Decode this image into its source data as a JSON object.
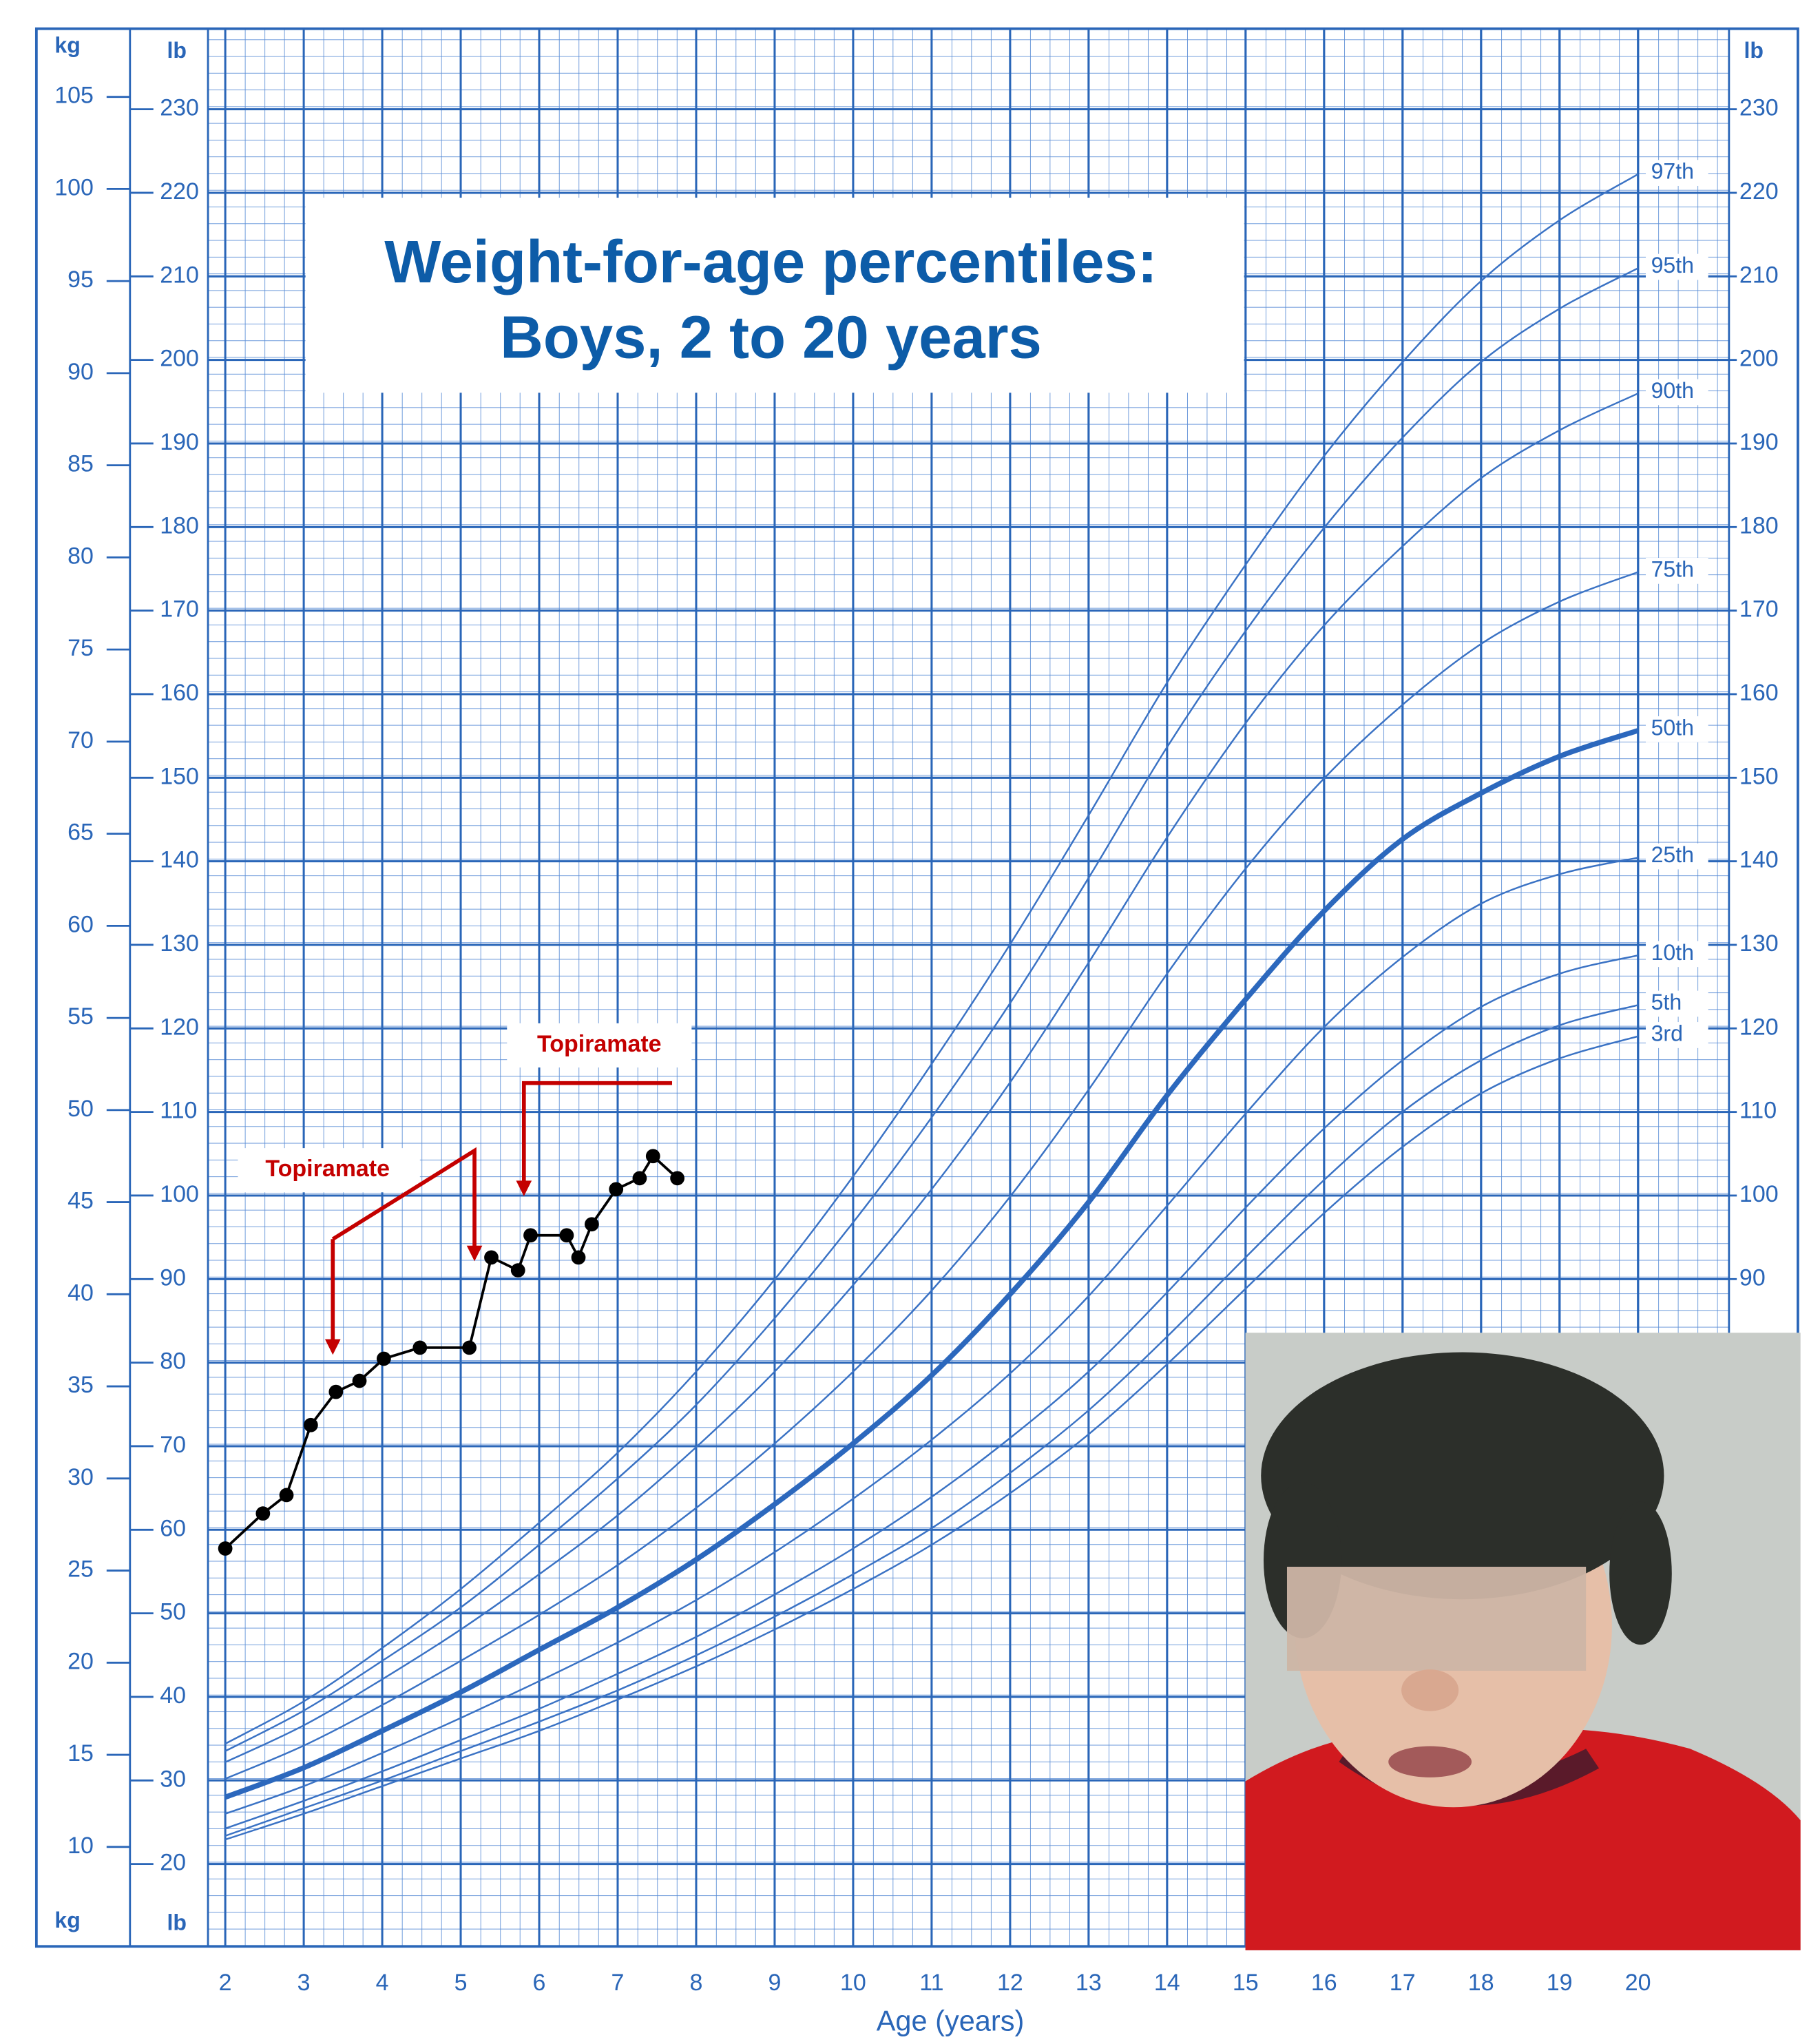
{
  "chart_data": {
    "type": "line",
    "title": "Weight-for-age percentiles:",
    "subtitle": "Boys, 2 to 20 years",
    "x_label": "Age (years)",
    "y_label": "kg",
    "y2_label": "lb",
    "xlim": [
      1.78,
      21.16
    ],
    "ylim": [
      4.6,
      108.7
    ],
    "y2lim": [
      10.14,
      239.64
    ],
    "xticks": [
      2,
      3,
      4,
      5,
      6,
      7,
      8,
      9,
      10,
      11,
      12,
      13,
      14,
      15,
      16,
      17,
      18,
      19,
      20
    ],
    "yticks": [
      10,
      15,
      20,
      25,
      30,
      35,
      40,
      45,
      50,
      55,
      60,
      65,
      70,
      75,
      80,
      85,
      90,
      95,
      100,
      105
    ],
    "y2ticks": [
      20,
      30,
      40,
      50,
      60,
      70,
      80,
      90,
      100,
      110,
      120,
      130,
      140,
      150,
      160,
      170,
      180,
      190,
      200,
      210,
      220,
      230
    ],
    "grid": true,
    "x": [
      2,
      3,
      4,
      5,
      6,
      7,
      8,
      9,
      10,
      11,
      12,
      13,
      14,
      15,
      16,
      17,
      18,
      19,
      20
    ],
    "series": [
      {
        "name": "3rd",
        "color": "#3a72c4",
        "width": 1.3,
        "values": [
          10.4,
          11.8,
          13.3,
          14.8,
          16.3,
          18.0,
          19.8,
          21.8,
          24.0,
          26.4,
          29.2,
          32.4,
          36.2,
          40.3,
          44.4,
          48.0,
          50.9,
          52.8,
          54.0
        ]
      },
      {
        "name": "5th",
        "color": "#3a72c4",
        "width": 1.3,
        "values": [
          10.6,
          12.1,
          13.6,
          15.2,
          16.8,
          18.5,
          20.4,
          22.5,
          24.8,
          27.3,
          30.3,
          33.7,
          37.7,
          42.0,
          46.2,
          49.9,
          52.7,
          54.6,
          55.7
        ]
      },
      {
        "name": "10th",
        "color": "#3a72c4",
        "width": 1.3,
        "values": [
          11.0,
          12.5,
          14.1,
          15.8,
          17.5,
          19.4,
          21.4,
          23.7,
          26.2,
          29.0,
          32.2,
          35.8,
          40.1,
          44.7,
          49.0,
          52.7,
          55.6,
          57.4,
          58.4
        ]
      },
      {
        "name": "25th",
        "color": "#3a72c4",
        "width": 1.3,
        "values": [
          11.8,
          13.3,
          15.1,
          17.0,
          19.0,
          21.1,
          23.4,
          26.0,
          28.9,
          32.1,
          35.7,
          39.9,
          44.8,
          49.8,
          54.5,
          58.3,
          61.2,
          62.8,
          63.7
        ]
      },
      {
        "name": "50th",
        "color": "#2c68bd",
        "width": 4,
        "values": [
          12.7,
          14.3,
          16.3,
          18.4,
          20.7,
          23.0,
          25.6,
          28.6,
          31.9,
          35.6,
          40.0,
          45.0,
          50.8,
          56.0,
          60.8,
          64.7,
          67.2,
          69.2,
          70.6
        ]
      },
      {
        "name": "75th",
        "color": "#3a72c4",
        "width": 1.3,
        "values": [
          13.7,
          15.5,
          17.7,
          20.1,
          22.6,
          25.3,
          28.4,
          31.9,
          35.8,
          40.2,
          45.3,
          51.1,
          57.4,
          63.1,
          68.0,
          72.0,
          75.3,
          77.6,
          79.2
        ]
      },
      {
        "name": "90th",
        "color": "#3a72c4",
        "width": 1.3,
        "values": [
          14.6,
          16.6,
          19.1,
          21.8,
          24.8,
          28.0,
          31.7,
          35.8,
          40.5,
          45.7,
          51.5,
          58.0,
          64.8,
          71.0,
          76.3,
          80.6,
          84.3,
          86.9,
          88.9
        ]
      },
      {
        "name": "95th",
        "color": "#3a72c4",
        "width": 1.3,
        "values": [
          15.2,
          17.4,
          20.1,
          23.0,
          26.4,
          30.0,
          34.0,
          38.7,
          43.9,
          49.6,
          55.8,
          62.6,
          69.7,
          76.0,
          81.6,
          86.5,
          90.6,
          93.5,
          95.7
        ]
      },
      {
        "name": "97th",
        "color": "#3a72c4",
        "width": 1.3,
        "values": [
          15.6,
          17.9,
          20.8,
          24.0,
          27.6,
          31.4,
          35.8,
          40.8,
          46.4,
          52.5,
          59.0,
          66.0,
          73.2,
          79.6,
          85.5,
          90.6,
          95.0,
          98.3,
          100.8
        ]
      }
    ],
    "measurements": {
      "color": "#000000",
      "x": [
        2.0,
        2.48,
        2.78,
        3.09,
        3.41,
        3.71,
        4.02,
        4.48,
        5.11,
        5.39,
        5.73,
        5.89,
        6.35,
        6.5,
        6.67,
        6.98,
        7.28,
        7.45,
        7.76
      ],
      "values": [
        26.2,
        28.1,
        29.1,
        32.9,
        34.7,
        35.3,
        36.5,
        37.1,
        37.1,
        42.0,
        41.3,
        43.2,
        43.2,
        42.0,
        43.8,
        45.7,
        46.3,
        47.5,
        46.3
      ]
    },
    "annotations": [
      {
        "text": "Topiramate"
      },
      {
        "text": "Topiramate"
      }
    ]
  }
}
